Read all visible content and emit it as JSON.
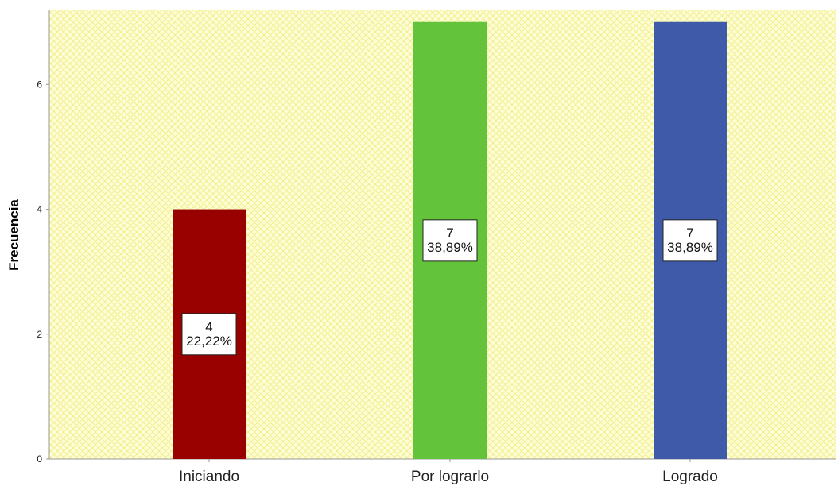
{
  "chart_data": {
    "type": "bar",
    "title": "",
    "xlabel": "",
    "ylabel": "Frecuencia",
    "categories": [
      "Iniciando",
      "Por lograrlo",
      "Logrado"
    ],
    "values": [
      4,
      7,
      7
    ],
    "percent_labels": [
      "22,22%",
      "38,89%",
      "38,89%"
    ],
    "bar_colors": [
      "#990000",
      "#63c43b",
      "#3e5aa8"
    ],
    "ylim": [
      0,
      7.2
    ],
    "yticks": [
      0,
      2,
      4,
      6
    ],
    "ytick_labels": [
      "0",
      "2",
      "4",
      "6"
    ],
    "grid": false,
    "legend": "none",
    "background": "yellow crosshatch"
  }
}
